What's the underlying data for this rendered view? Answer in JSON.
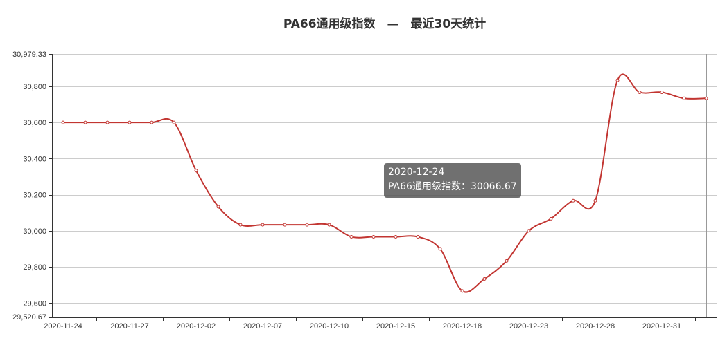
{
  "chart_data": {
    "type": "line",
    "title": "PA66通用级指数　—　最近30天统计",
    "series": [
      {
        "name": "PA66通用级指数",
        "color": "#c23531",
        "x": [
          "2020-11-24",
          "2020-11-25",
          "2020-11-26",
          "2020-11-27",
          "2020-11-30",
          "2020-12-01",
          "2020-12-02",
          "2020-12-03",
          "2020-12-04",
          "2020-12-07",
          "2020-12-08",
          "2020-12-09",
          "2020-12-10",
          "2020-12-11",
          "2020-12-14",
          "2020-12-15",
          "2020-12-16",
          "2020-12-17",
          "2020-12-18",
          "2020-12-21",
          "2020-12-22",
          "2020-12-23",
          "2020-12-24",
          "2020-12-25",
          "2020-12-28",
          "2020-12-29",
          "2020-12-30",
          "2020-12-31",
          "2021-01-04",
          "2021-01-05"
        ],
        "values": [
          30600,
          30600,
          30600,
          30600,
          30600,
          30600,
          30333.33,
          30133.33,
          30033.33,
          30033.33,
          30033.33,
          30033.33,
          30033.33,
          29966.67,
          29966.67,
          29966.67,
          29966.67,
          29900,
          29666.67,
          29733.33,
          29833.33,
          30000,
          30066.67,
          30166.67,
          30166.67,
          30833.33,
          30766.67,
          30766.67,
          30733.33,
          30733.33
        ]
      }
    ],
    "x_tick_labels": [
      "2020-11-24",
      "2020-11-27",
      "2020-12-02",
      "2020-12-07",
      "2020-12-10",
      "2020-12-15",
      "2020-12-18",
      "2020-12-23",
      "2020-12-28",
      "2020-12-31"
    ],
    "y_tick_labels": [
      "29,520.67",
      "29,600",
      "29,800",
      "30,000",
      "30,200",
      "30,400",
      "30,600",
      "30,800",
      "30,979.33"
    ],
    "y_ticks": [
      29600,
      29800,
      30000,
      30200,
      30400,
      30600,
      30800
    ],
    "ylim": [
      29520.67,
      30979.33
    ],
    "grid": true,
    "tooltip": {
      "date": "2020-12-24",
      "label": "PA66通用级指数：30066.67",
      "index": 22
    }
  }
}
